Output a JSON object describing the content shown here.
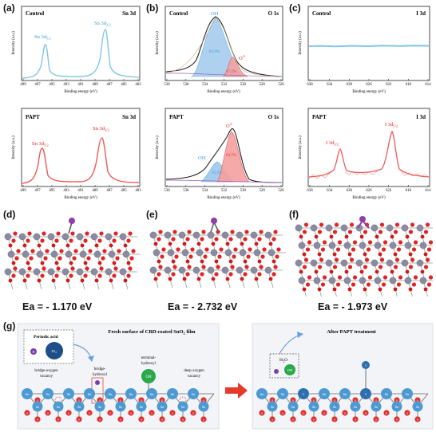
{
  "panels": {
    "a": "(a)",
    "b": "(b)",
    "c": "(c)",
    "d": "(d)",
    "e": "(e)",
    "f": "(f)",
    "g": "(g)"
  },
  "chart_data": [
    {
      "type": "line",
      "id": "a-control",
      "title_left": "Control",
      "title_right": "Sn 3d",
      "xlabel": "Binding energy (eV)",
      "ylabel": "Intensity (a.u.)",
      "xlim": [
        499,
        483
      ],
      "xticks": [
        499,
        497,
        495,
        493,
        491,
        489,
        487,
        485,
        483
      ],
      "peaks": [
        {
          "label": "Sn 3d5/2",
          "x": 495.2
        },
        {
          "label": "Sn 3d3/2",
          "x": 486.8
        }
      ],
      "color": "#7ec6e6"
    },
    {
      "type": "line",
      "id": "b-control",
      "title_left": "Control",
      "title_right": "O 1s",
      "xlabel": "Binding energy (eV)",
      "ylabel": "Intensity (a.u.)",
      "xlim": [
        538,
        526
      ],
      "xticks": [
        538,
        536,
        534,
        532,
        530,
        528,
        526
      ],
      "components": [
        {
          "label": "OH",
          "percent": "82.9%",
          "x": 532.3
        },
        {
          "label": "O2-",
          "percent": "17.1%",
          "x": 530.6
        }
      ],
      "color": "#5aaee0"
    },
    {
      "type": "line",
      "id": "c-control",
      "title_left": "Control",
      "title_right": "I 3d",
      "xlabel": "Binding energy (eV)",
      "ylabel": "Intensity (a.u.)",
      "xlim": [
        638,
        614
      ],
      "xticks": [
        638,
        634,
        630,
        626,
        622,
        618,
        614
      ],
      "color": "#7ec6e6"
    },
    {
      "type": "line",
      "id": "a-papt",
      "title_left": "PAPT",
      "title_right": "Sn 3d",
      "xlabel": "Binding energy (eV)",
      "ylabel": "Intensity (a.u.)",
      "xlim": [
        499,
        483
      ],
      "xticks": [
        499,
        497,
        495,
        493,
        491,
        489,
        487,
        485,
        483
      ],
      "peaks": [
        {
          "label": "Sn 3d5/2",
          "x": 495.6
        },
        {
          "label": "Sn 3d3/2",
          "x": 487.2
        }
      ],
      "color": "#ee5a5a"
    },
    {
      "type": "line",
      "id": "b-papt",
      "title_left": "PAPT",
      "title_right": "O 1s",
      "xlabel": "Binding energy (eV)",
      "ylabel": "Intensity (a.u.)",
      "xlim": [
        538,
        526
      ],
      "xticks": [
        538,
        536,
        534,
        532,
        530,
        528,
        526
      ],
      "components": [
        {
          "label": "OH",
          "percent": "35.3%",
          "x": 532.1
        },
        {
          "label": "O2-",
          "percent": "64.7%",
          "x": 530.8
        }
      ],
      "color": "#ee5a5a"
    },
    {
      "type": "line",
      "id": "c-papt",
      "title_left": "PAPT",
      "title_right": "I 3d",
      "xlabel": "Binding energy (eV)",
      "ylabel": "Intensity (a.u.)",
      "xlim": [
        638,
        614
      ],
      "xticks": [
        638,
        634,
        630,
        626,
        622,
        618,
        614
      ],
      "peaks": [
        {
          "label": "I 3d3/2",
          "x": 630.6
        },
        {
          "label": "I 3d5/2",
          "x": 619.2
        }
      ],
      "color": "#ee5a5a"
    }
  ],
  "labels": {
    "sn52": "Sn 3d",
    "sn52_sub": "5/2",
    "sn32": "Sn 3d",
    "sn32_sub": "3/2",
    "i32": "I 3d",
    "i32_sub": "3/2",
    "i52": "I 3d",
    "i52_sub": "5/2",
    "oh": "OH",
    "o2": "O",
    "o2_sup": "2-"
  },
  "energies": {
    "d": "Ea = - 1.170 eV",
    "e": "Ea = - 2.732 eV",
    "f": "Ea = - 1.973 eV"
  },
  "scheme": {
    "left_title": "Fresh surface of CBD-coated SnO",
    "left_title_sub": "2",
    "left_title_end": " film",
    "right_title": "After PAPT treatment",
    "periodic_acid": "Periodic acid",
    "h": "H",
    "io4": "IO",
    "io4_sub": "4",
    "io4_sup": "-",
    "bridge_oxygen": "bridge-oxygen",
    "vacancy": "vacancy",
    "bridge_hydroxyl_1": "bridge-",
    "bridge_hydroxyl_2": "hydroxyl",
    "terminal_1": "terminal-",
    "terminal_2": "hydroxyl",
    "deep_oxygen": "deep oxygen",
    "deep_vacancy": "vacancy",
    "oh": "OH",
    "h2o": "H",
    "h2o_sub": "2",
    "h2o_end": "O",
    "sn": "Sn",
    "o": "O",
    "i": "I",
    "colors": {
      "sn": "#4d9ad2",
      "o": "#e03030",
      "iodine": "#2d6fb0",
      "oh": "#2aa84a",
      "h": "#7b3fa8"
    }
  }
}
